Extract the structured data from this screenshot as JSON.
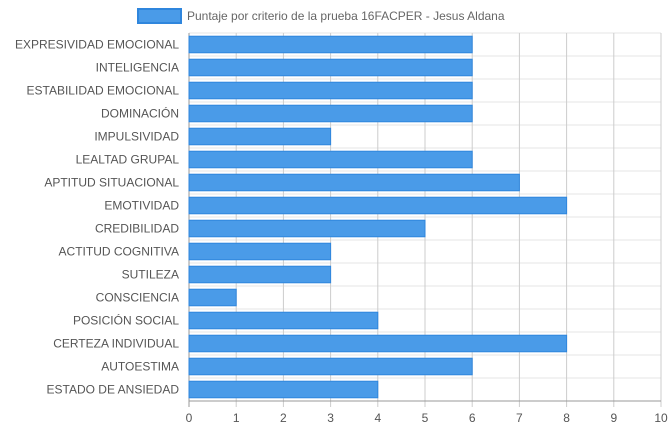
{
  "chart_data": {
    "type": "bar",
    "orientation": "horizontal",
    "title": "",
    "xlabel": "",
    "ylabel": "",
    "categories": [
      "EXPRESIVIDAD EMOCIONAL",
      "INTELIGENCIA",
      "ESTABILIDAD EMOCIONAL",
      "DOMINACIÓN",
      "IMPULSIVIDAD",
      "LEALTAD GRUPAL",
      "APTITUD SITUACIONAL",
      "EMOTIVIDAD",
      "CREDIBILIDAD",
      "ACTITUD COGNITIVA",
      "SUTILEZA",
      "CONSCIENCIA",
      "POSICIÓN SOCIAL",
      "CERTEZA INDIVIDUAL",
      "AUTOESTIMA",
      "ESTADO DE ANSIEDAD"
    ],
    "series": [
      {
        "name": "Puntaje por criterio de la prueba 16FACPER - Jesus Aldana",
        "values": [
          6,
          6,
          6,
          6,
          3,
          6,
          7,
          8,
          5,
          3,
          3,
          1,
          4,
          8,
          6,
          4
        ],
        "color": "#4a9be8",
        "border_color": "#2f86dd"
      }
    ],
    "xlim": [
      0,
      10
    ],
    "xticks": [
      "0",
      "1",
      "2",
      "3",
      "4",
      "5",
      "6",
      "7",
      "8",
      "9",
      "10"
    ],
    "grid": true,
    "legend_position": "top"
  }
}
